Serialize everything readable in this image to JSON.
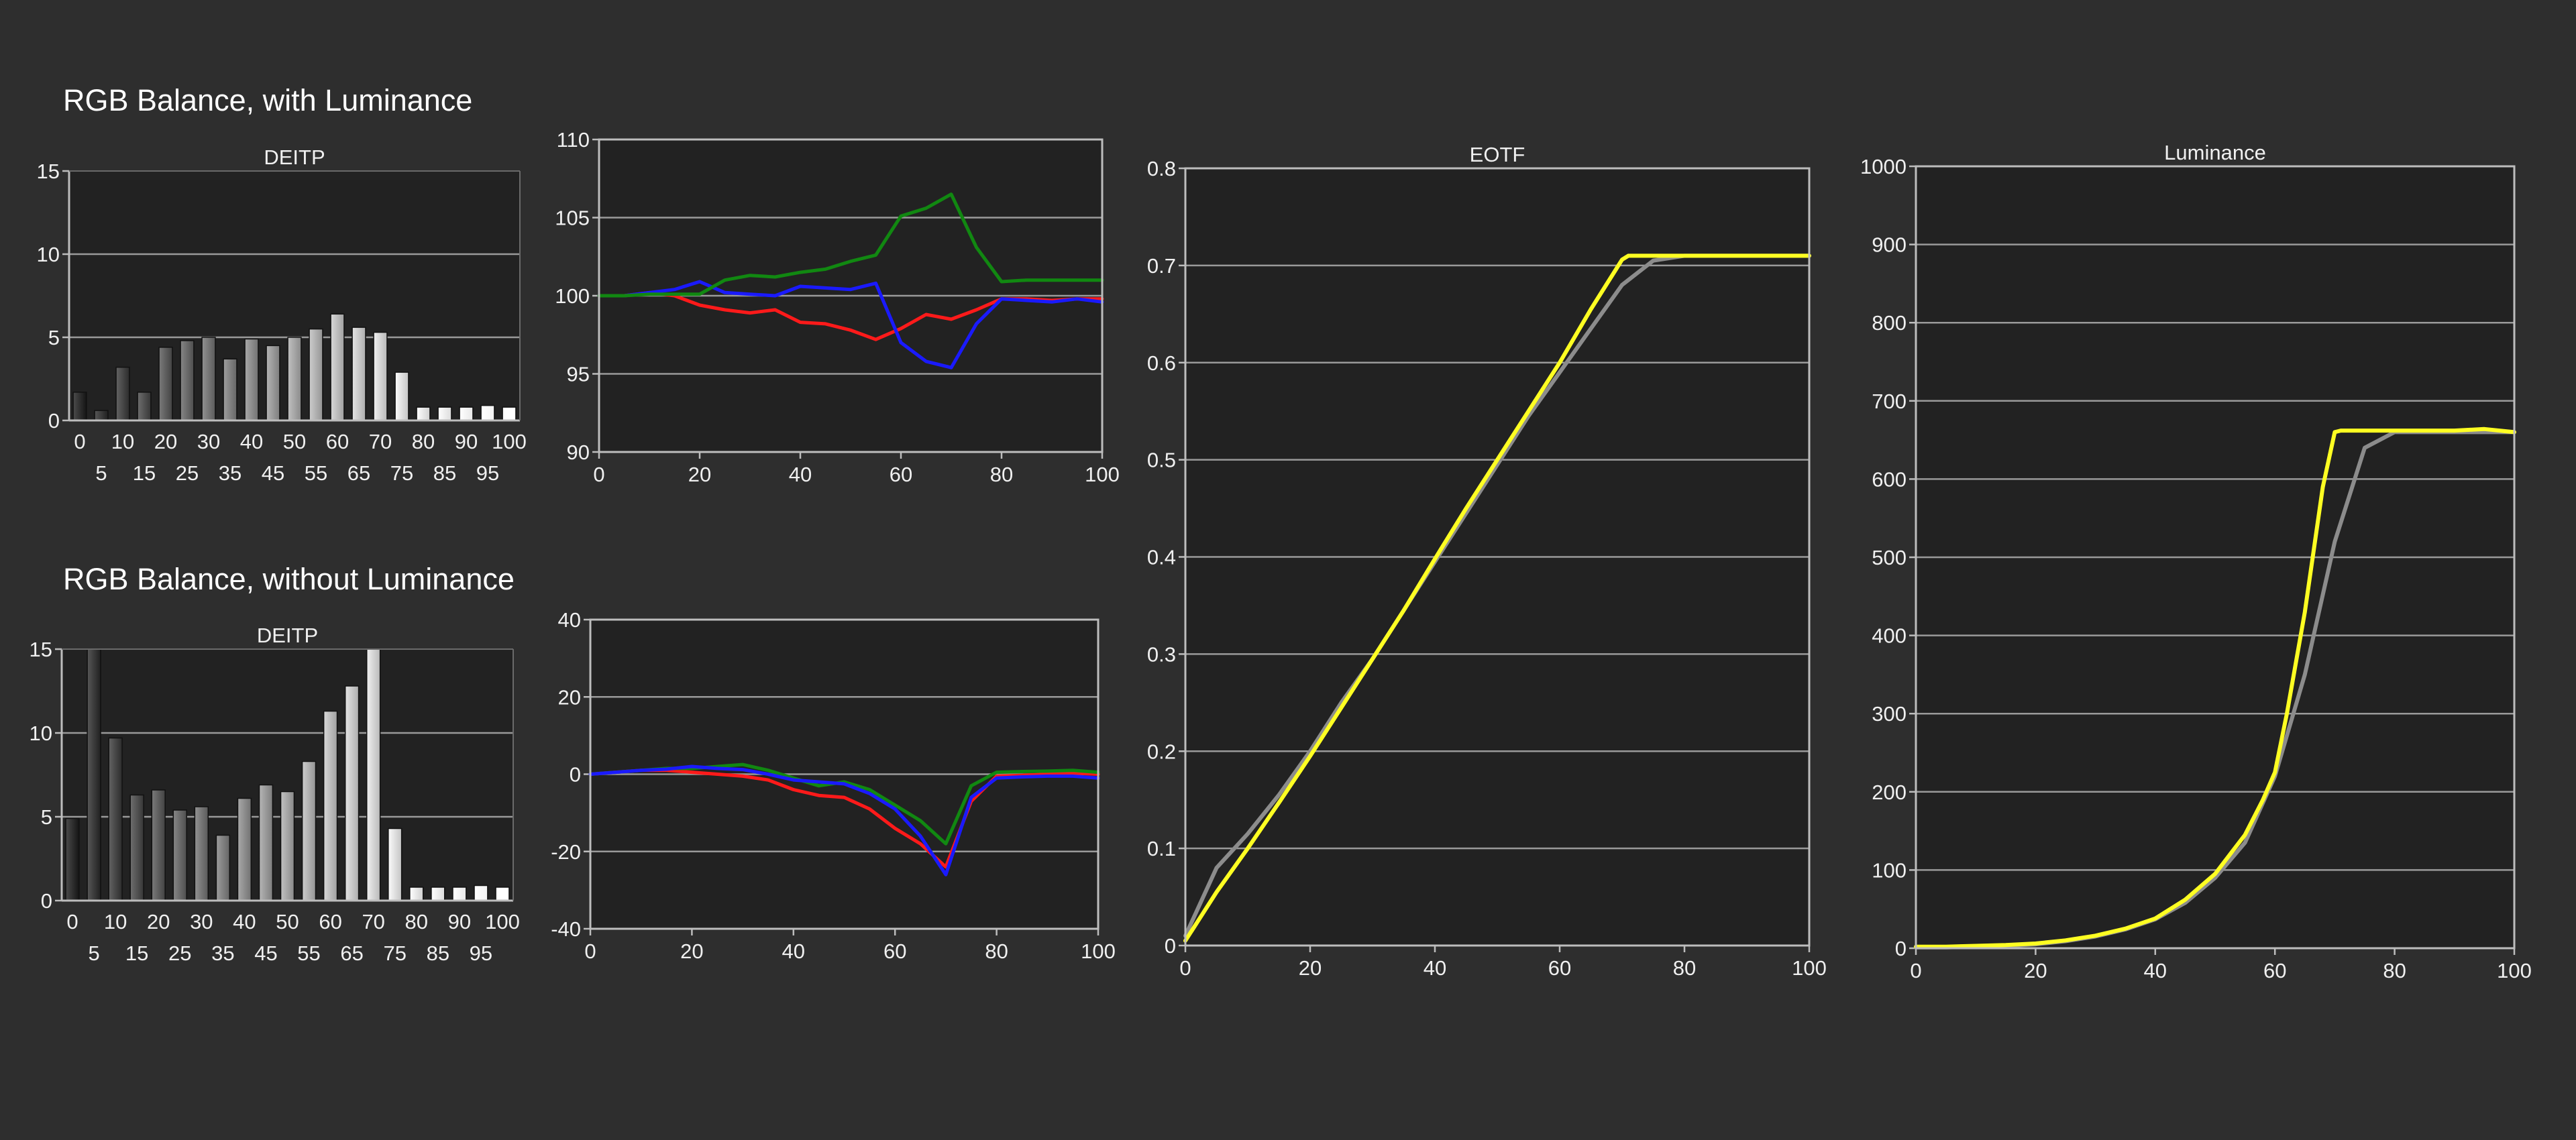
{
  "sections": {
    "top_title": "RGB Balance, with Luminance",
    "bottom_title": "RGB Balance, without Luminance"
  },
  "colors": {
    "background": "#2e2e2e",
    "plot_background": "#222222",
    "grid": "#9a9a9a",
    "red": "#ff1a1a",
    "green": "#118811",
    "blue": "#1a1aff",
    "target": "#8c8c8c",
    "measured": "#ffff22"
  },
  "chart_data": [
    {
      "id": "deitp-top",
      "type": "bar",
      "title": "DEITP",
      "categories": [
        "0",
        "5",
        "10",
        "15",
        "20",
        "25",
        "30",
        "35",
        "40",
        "45",
        "50",
        "55",
        "60",
        "65",
        "70",
        "75",
        "80",
        "85",
        "90",
        "95",
        "100"
      ],
      "values": [
        1.7,
        0.6,
        3.2,
        1.7,
        4.4,
        4.8,
        5.0,
        3.7,
        4.9,
        4.5,
        5.0,
        5.5,
        6.4,
        5.6,
        5.3,
        2.9,
        0.8,
        0.8,
        0.8,
        0.9,
        0.8
      ],
      "ylim": [
        0,
        15
      ],
      "yticks": [
        0,
        5,
        10,
        15
      ],
      "xlabel": "",
      "ylabel": ""
    },
    {
      "id": "rgb-top",
      "type": "line",
      "title": "",
      "ylim": [
        90,
        110
      ],
      "yticks": [
        90,
        95,
        100,
        105,
        110
      ],
      "xlim": [
        0,
        100
      ],
      "xticks": [
        0,
        20,
        40,
        60,
        80,
        100
      ],
      "x": [
        0,
        5,
        10,
        15,
        20,
        25,
        30,
        35,
        40,
        45,
        50,
        55,
        60,
        65,
        70,
        75,
        80,
        85,
        90,
        95,
        100
      ],
      "reference": 100,
      "series": [
        {
          "color_key": "red",
          "values": [
            100,
            100,
            100.2,
            100,
            99.4,
            99.1,
            98.9,
            99.1,
            98.3,
            98.2,
            97.8,
            97.2,
            97.9,
            98.8,
            98.5,
            99.1,
            99.8,
            99.8,
            99.7,
            99.8,
            99.8
          ]
        },
        {
          "color_key": "blue",
          "values": [
            100,
            100,
            100.2,
            100.4,
            100.9,
            100.2,
            100.1,
            100,
            100.6,
            100.5,
            100.4,
            100.8,
            97.0,
            95.8,
            95.4,
            98.2,
            99.8,
            99.7,
            99.6,
            99.8,
            99.6
          ]
        },
        {
          "color_key": "green",
          "values": [
            100,
            100,
            100.1,
            100.1,
            100.1,
            101.0,
            101.3,
            101.2,
            101.5,
            101.7,
            102.2,
            102.6,
            105.1,
            105.6,
            106.5,
            103.1,
            100.9,
            101.0,
            101.0,
            101.0,
            101.0
          ]
        }
      ]
    },
    {
      "id": "deitp-bottom",
      "type": "bar",
      "title": "DEITP",
      "categories": [
        "0",
        "5",
        "10",
        "15",
        "20",
        "25",
        "30",
        "35",
        "40",
        "45",
        "50",
        "55",
        "60",
        "65",
        "70",
        "75",
        "80",
        "85",
        "90",
        "95",
        "100"
      ],
      "values": [
        4.9,
        15,
        9.7,
        6.3,
        6.6,
        5.4,
        5.6,
        3.9,
        6.1,
        6.9,
        6.5,
        8.3,
        11.3,
        12.8,
        15,
        4.3,
        0.8,
        0.8,
        0.8,
        0.9,
        0.8
      ],
      "ylim": [
        0,
        15
      ],
      "yticks": [
        0,
        5,
        10,
        15
      ],
      "xlabel": "",
      "ylabel": ""
    },
    {
      "id": "rgb-bottom",
      "type": "line",
      "title": "",
      "ylim": [
        -40,
        40
      ],
      "yticks": [
        -40,
        -20,
        0,
        20,
        40
      ],
      "xlim": [
        0,
        100
      ],
      "xticks": [
        0,
        20,
        40,
        60,
        80,
        100
      ],
      "x": [
        0,
        5,
        10,
        15,
        20,
        25,
        30,
        35,
        40,
        45,
        50,
        55,
        60,
        65,
        70,
        75,
        80,
        85,
        90,
        95,
        100
      ],
      "reference": 0,
      "series": [
        {
          "color_key": "red",
          "values": [
            0,
            0.5,
            1,
            1,
            0.5,
            0,
            -0.5,
            -1.5,
            -4,
            -5.5,
            -6,
            -9,
            -14,
            -18,
            -24,
            -7,
            -0.5,
            -0.3,
            0,
            0.3,
            0
          ]
        },
        {
          "color_key": "green",
          "values": [
            0,
            0.5,
            1,
            1.5,
            1.5,
            2,
            2.5,
            1,
            -1,
            -3,
            -2,
            -4,
            -8,
            -12,
            -18,
            -3,
            0.5,
            0.7,
            0.8,
            1,
            0.5
          ]
        },
        {
          "color_key": "blue",
          "values": [
            0,
            0.5,
            1,
            1.3,
            2,
            1.5,
            1.2,
            0,
            -1.5,
            -2,
            -2.5,
            -5,
            -9,
            -16,
            -26,
            -6,
            -1,
            -0.7,
            -0.5,
            -0.5,
            -1
          ]
        }
      ]
    },
    {
      "id": "eotf",
      "type": "line",
      "title": "EOTF",
      "ylim": [
        0,
        0.8
      ],
      "yticks": [
        0,
        0.1,
        0.2,
        0.3,
        0.4,
        0.5,
        0.6,
        0.7,
        0.8
      ],
      "xlim": [
        0,
        100
      ],
      "xticks": [
        0,
        20,
        40,
        60,
        80,
        100
      ],
      "series": [
        {
          "color_key": "target",
          "x": [
            0,
            5,
            10,
            15,
            20,
            25,
            30,
            35,
            40,
            45,
            50,
            55,
            60,
            65,
            70,
            75,
            80,
            85,
            90,
            95,
            100
          ],
          "values": [
            0.01,
            0.08,
            0.115,
            0.155,
            0.2,
            0.25,
            0.295,
            0.345,
            0.395,
            0.445,
            0.495,
            0.545,
            0.59,
            0.635,
            0.68,
            0.705,
            0.71,
            0.71,
            0.71,
            0.71,
            0.71
          ]
        },
        {
          "color_key": "measured",
          "x": [
            0,
            5,
            10,
            15,
            20,
            25,
            30,
            35,
            40,
            45,
            50,
            55,
            60,
            65,
            70,
            71,
            75,
            80,
            85,
            90,
            95,
            100
          ],
          "values": [
            0.005,
            0.055,
            0.1,
            0.147,
            0.195,
            0.245,
            0.295,
            0.345,
            0.398,
            0.45,
            0.5,
            0.55,
            0.6,
            0.655,
            0.706,
            0.71,
            0.71,
            0.71,
            0.71,
            0.71,
            0.71,
            0.71
          ]
        }
      ]
    },
    {
      "id": "luminance",
      "type": "line",
      "title": "Luminance",
      "ylim": [
        0,
        1000
      ],
      "yticks": [
        0,
        100,
        200,
        300,
        400,
        500,
        600,
        700,
        800,
        900,
        1000
      ],
      "xlim": [
        0,
        100
      ],
      "xticks": [
        0,
        20,
        40,
        60,
        80,
        100
      ],
      "series": [
        {
          "color_key": "target",
          "x": [
            0,
            5,
            10,
            15,
            20,
            25,
            30,
            35,
            40,
            45,
            50,
            55,
            60,
            65,
            70,
            75,
            80,
            85,
            90,
            95,
            100
          ],
          "values": [
            1,
            1,
            2,
            3,
            5,
            9,
            15,
            24,
            37,
            58,
            90,
            135,
            220,
            350,
            520,
            640,
            660,
            660,
            660,
            660,
            660
          ]
        },
        {
          "color_key": "measured",
          "x": [
            0,
            5,
            10,
            15,
            20,
            25,
            30,
            35,
            40,
            45,
            50,
            52,
            55,
            58,
            60,
            62,
            65,
            68,
            70,
            71,
            75,
            80,
            85,
            90,
            95,
            100
          ],
          "values": [
            2,
            2,
            3,
            4,
            6,
            10,
            16,
            25,
            38,
            62,
            95,
            115,
            145,
            190,
            225,
            300,
            430,
            590,
            660,
            662,
            662,
            662,
            662,
            662,
            664,
            660
          ]
        }
      ]
    }
  ]
}
